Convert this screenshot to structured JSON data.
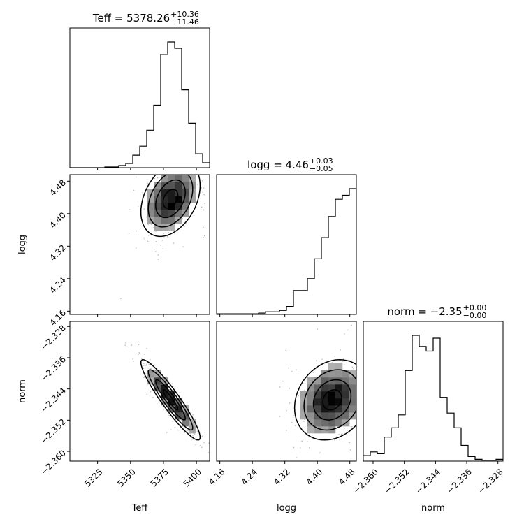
{
  "chart_data": {
    "type": "corner",
    "parameters": [
      "Teff",
      "logg",
      "norm"
    ],
    "titles": [
      {
        "prefix": "Teff = ",
        "value": "5378.26",
        "upper": "+10.36",
        "lower": "−11.46"
      },
      {
        "prefix": "logg = ",
        "value": "4.46",
        "upper": "+0.03",
        "lower": "−0.05"
      },
      {
        "prefix": "norm = ",
        "value": "−2.35",
        "upper": "+0.00",
        "lower": "−0.00"
      }
    ],
    "ranges": {
      "Teff": [
        5304,
        5410
      ],
      "logg": [
        4.152,
        4.496
      ],
      "norm": [
        -2.3625,
        -2.3267
      ]
    },
    "ticks": {
      "Teff": [
        5325,
        5350,
        5375,
        5400
      ],
      "logg": [
        4.16,
        4.24,
        4.32,
        4.4,
        4.48
      ],
      "norm": [
        -2.36,
        -2.352,
        -2.344,
        -2.336,
        -2.328
      ]
    },
    "tick_labels": {
      "Teff": [
        "5325",
        "5350",
        "5375",
        "5400"
      ],
      "logg": [
        "4.16",
        "4.24",
        "4.32",
        "4.40",
        "4.48"
      ],
      "norm": [
        "−2.360",
        "−2.352",
        "−2.344",
        "−2.336",
        "−2.328"
      ]
    },
    "histograms": {
      "Teff": {
        "edges_start": 5304,
        "bin_width": 5.3,
        "counts": [
          0,
          0,
          0,
          0,
          0,
          1,
          1,
          3,
          6,
          18,
          31,
          54,
          90,
          163,
          181,
          172,
          112,
          64,
          20,
          7
        ]
      },
      "logg": {
        "edges_start": 4.152,
        "bin_width": 0.0172,
        "counts": [
          1,
          1,
          1,
          1,
          1,
          1,
          2,
          4,
          4,
          6,
          12,
          36,
          36,
          54,
          84,
          116,
          148,
          174,
          180,
          190
        ]
      },
      "norm": {
        "edges_start": -2.3625,
        "bin_width": 0.00179,
        "counts": [
          6,
          10,
          8,
          26,
          36,
          50,
          98,
          136,
          124,
          119,
          133,
          69,
          52,
          36,
          17,
          5,
          2,
          1,
          1,
          2
        ]
      }
    }
  }
}
